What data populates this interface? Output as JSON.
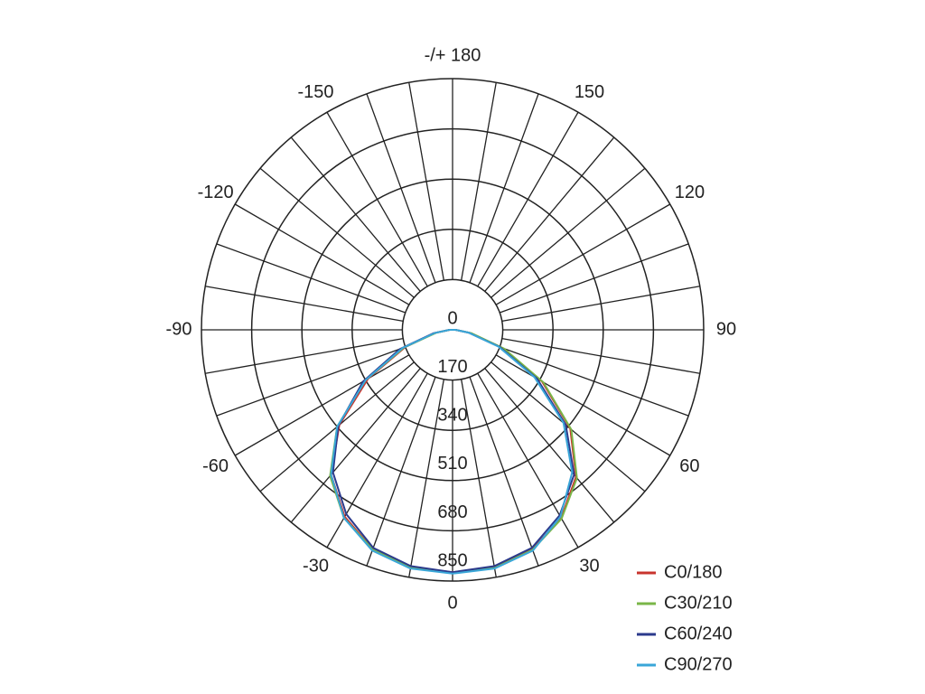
{
  "chart_data": {
    "type": "polar",
    "x": [
      -90,
      -80,
      -70,
      -60,
      -50,
      -40,
      -30,
      -20,
      -10,
      0,
      10,
      20,
      30,
      40,
      50,
      60,
      70,
      80,
      90
    ],
    "series": [
      {
        "name": "C0/180",
        "color": "#c8342e",
        "values": [
          10,
          60,
          170,
          330,
          500,
          640,
          730,
          790,
          815,
          820,
          815,
          790,
          735,
          650,
          520,
          350,
          180,
          60,
          10
        ]
      },
      {
        "name": "C30/210",
        "color": "#7ab648",
        "values": [
          10,
          55,
          175,
          340,
          510,
          645,
          735,
          790,
          815,
          822,
          818,
          792,
          738,
          655,
          525,
          355,
          185,
          65,
          10
        ]
      },
      {
        "name": "C60/240",
        "color": "#2b3a8c",
        "values": [
          10,
          65,
          190,
          350,
          505,
          630,
          720,
          785,
          812,
          820,
          812,
          785,
          725,
          640,
          500,
          330,
          170,
          55,
          10
        ]
      },
      {
        "name": "C90/270",
        "color": "#3aa6d8",
        "values": [
          10,
          60,
          180,
          340,
          510,
          640,
          735,
          795,
          820,
          825,
          820,
          795,
          730,
          630,
          490,
          320,
          165,
          55,
          10
        ]
      }
    ],
    "rlim": [
      0,
      850
    ],
    "rticks": [
      0,
      170,
      340,
      510,
      680,
      850
    ],
    "thetaticks": [
      {
        "value": 180,
        "label": "-/+ 180"
      },
      150,
      120,
      90,
      60,
      30,
      0,
      -30,
      -60,
      -90,
      -120,
      -150
    ],
    "grid": true,
    "legend": "lower right"
  }
}
